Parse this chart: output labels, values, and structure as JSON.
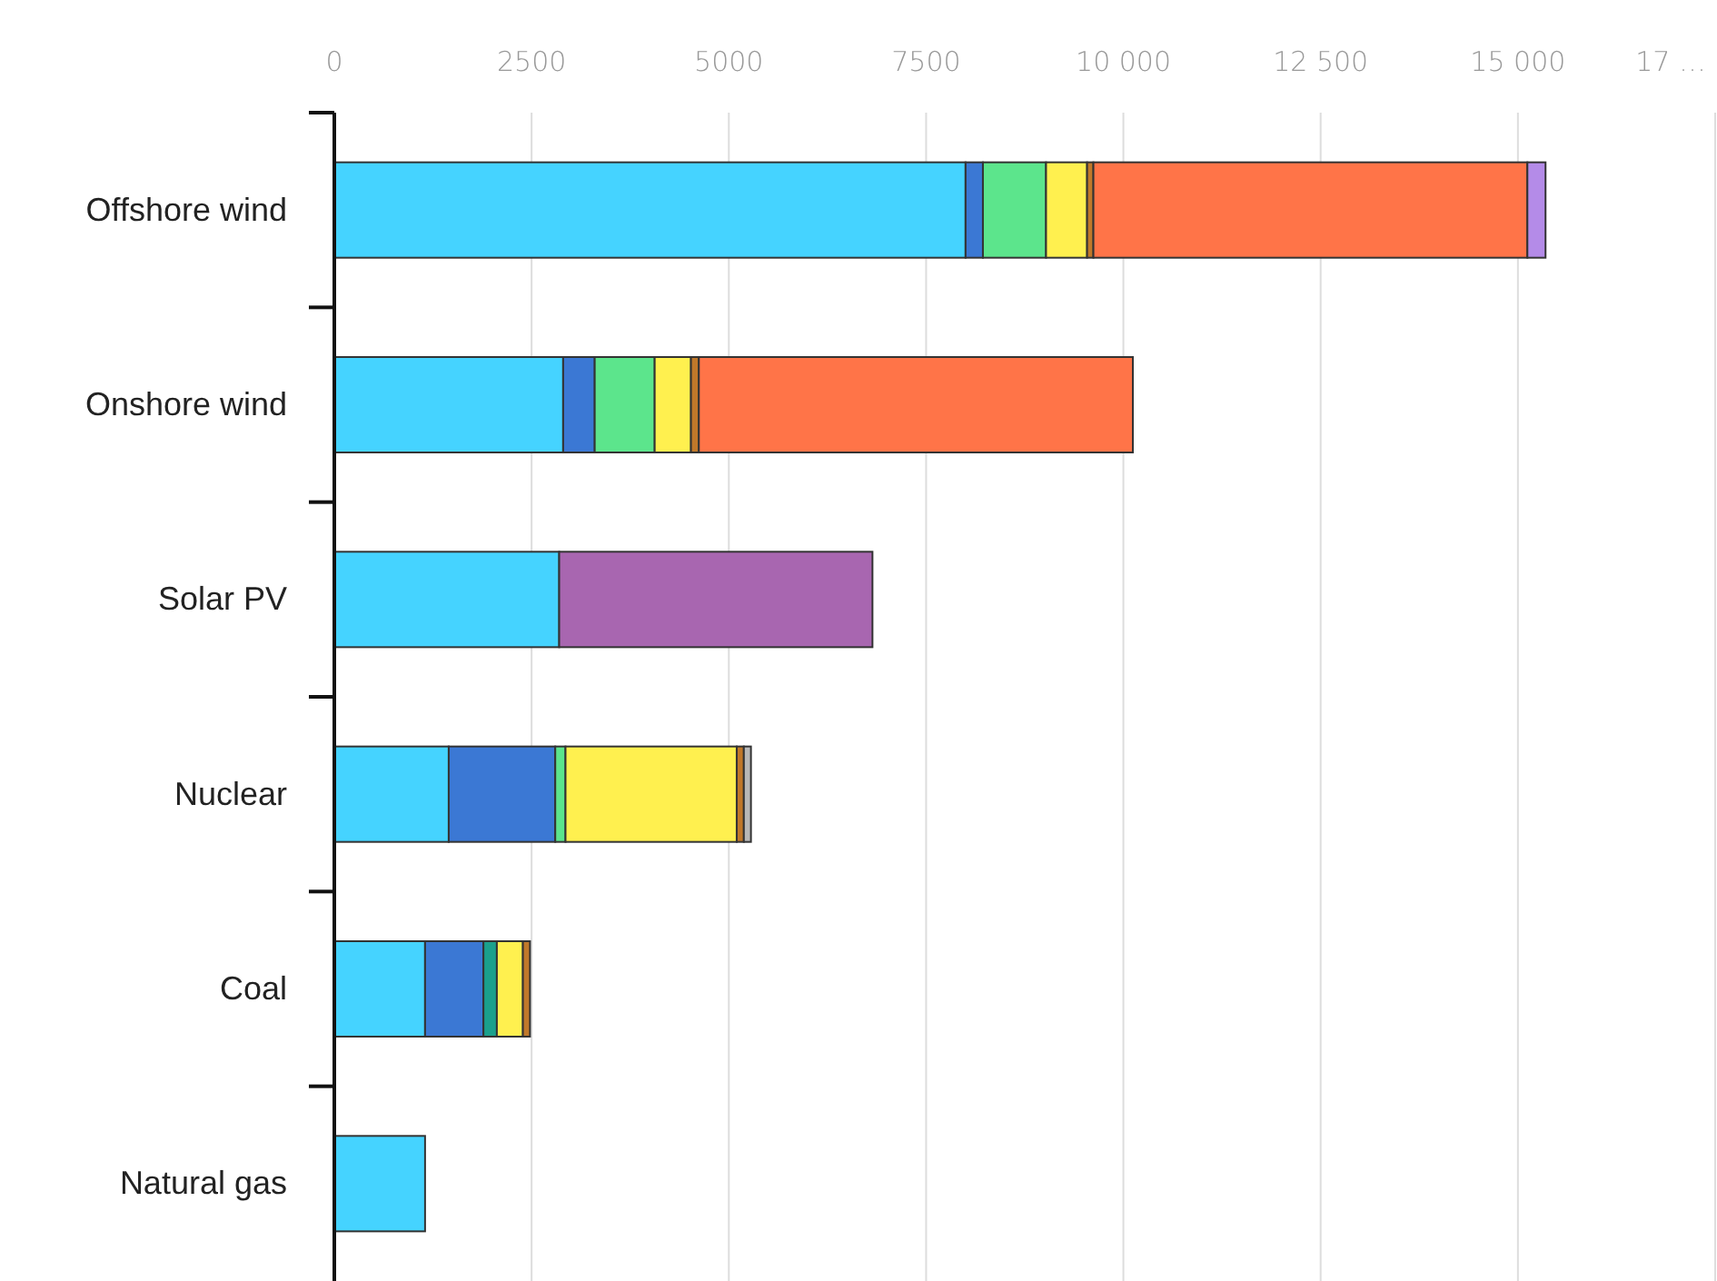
{
  "chart_data": {
    "type": "bar",
    "orientation": "horizontal",
    "stacked": true,
    "grid": "x",
    "categories": [
      "Offshore wind",
      "Onshore wind",
      "Solar PV",
      "Nuclear",
      "Coal",
      "Natural gas"
    ],
    "xlim": [
      0,
      17500
    ],
    "xticks": [
      0,
      2500,
      5000,
      7500,
      {
        "value": 10000,
        "label": "10 000"
      },
      {
        "value": 12500,
        "label": "12 500"
      },
      {
        "value": 15000,
        "label": "15 000"
      },
      {
        "value": 17500,
        "label": "17 …"
      }
    ],
    "series": [
      {
        "color": "#45d3ff",
        "values": [
          8000,
          2900,
          2850,
          1450,
          1150,
          1150
        ]
      },
      {
        "color": "#3b78d4",
        "values": [
          220,
          400,
          null,
          1350,
          740,
          null
        ]
      },
      {
        "color": "#5ce58c",
        "values": [
          800,
          760,
          null,
          130,
          null,
          null
        ]
      },
      {
        "color": "#1aa08c",
        "values": [
          null,
          null,
          null,
          null,
          170,
          null
        ]
      },
      {
        "color": "#fff04f",
        "values": [
          520,
          460,
          null,
          2170,
          330,
          null
        ]
      },
      {
        "color": "#c0782a",
        "values": [
          80,
          100,
          null,
          90,
          90,
          null
        ]
      },
      {
        "color": "#b8b8b8",
        "values": [
          null,
          null,
          null,
          90,
          null,
          null
        ]
      },
      {
        "color": "#ff7448",
        "values": [
          5500,
          5500,
          null,
          null,
          null,
          null
        ]
      },
      {
        "color": "#b48be8",
        "values": [
          230,
          null,
          null,
          null,
          null,
          null
        ]
      },
      {
        "color": "#a866b0",
        "values": [
          null,
          null,
          3970,
          null,
          null,
          null
        ]
      }
    ]
  }
}
